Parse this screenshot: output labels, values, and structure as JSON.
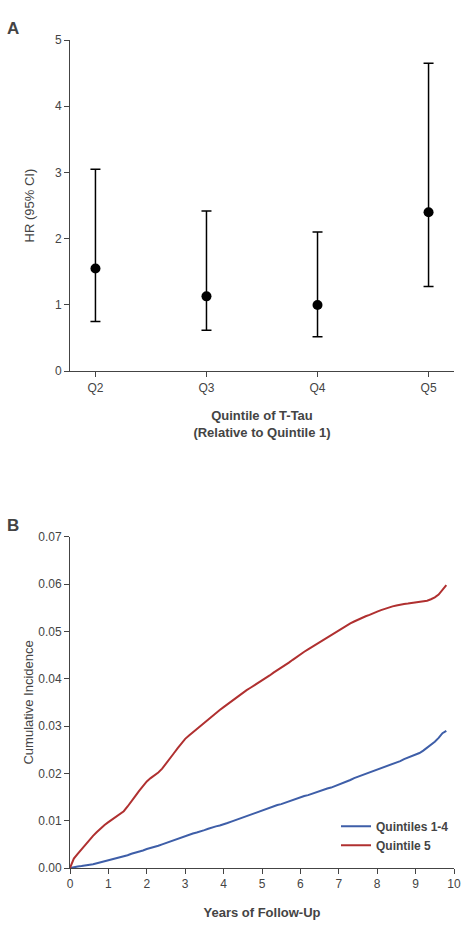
{
  "chart_data": [
    {
      "type": "scatter",
      "title": "A",
      "categories": [
        "Q2",
        "Q3",
        "Q4",
        "Q5"
      ],
      "values": [
        1.55,
        1.13,
        1.0,
        2.4
      ],
      "ci_low": [
        0.75,
        0.62,
        0.52,
        1.28
      ],
      "ci_high": [
        3.05,
        2.42,
        2.1,
        4.65
      ],
      "color": "#000000",
      "marker": "circle",
      "ylabel": "HR (95% CI)",
      "xlabel": "Quintile of T-Tau\n(Relative to Quintile 1)",
      "ylim": [
        0,
        5
      ],
      "yticks": [
        0,
        1,
        2,
        3,
        4,
        5
      ],
      "grid": false
    },
    {
      "type": "line",
      "title": "B",
      "series": [
        {
          "name": "Quintiles 1-4",
          "color": "#3e5ea8",
          "x": [
            0,
            0.1,
            0.2,
            0.3,
            0.4,
            0.5,
            0.6,
            0.7,
            0.8,
            0.9,
            1.0,
            1.1,
            1.2,
            1.3,
            1.4,
            1.5,
            1.6,
            1.7,
            1.8,
            1.9,
            2.0,
            2.1,
            2.2,
            2.3,
            2.4,
            2.5,
            2.6,
            2.7,
            2.8,
            2.9,
            3.0,
            3.1,
            3.2,
            3.3,
            3.4,
            3.5,
            3.6,
            3.7,
            3.8,
            3.9,
            4.0,
            4.1,
            4.2,
            4.3,
            4.4,
            4.5,
            4.6,
            4.7,
            4.8,
            4.9,
            5.0,
            5.1,
            5.2,
            5.3,
            5.4,
            5.5,
            5.6,
            5.7,
            5.8,
            5.9,
            6.0,
            6.1,
            6.2,
            6.3,
            6.4,
            6.5,
            6.6,
            6.7,
            6.8,
            6.9,
            7.0,
            7.1,
            7.2,
            7.3,
            7.4,
            7.5,
            7.6,
            7.7,
            7.8,
            7.9,
            8.0,
            8.1,
            8.2,
            8.3,
            8.4,
            8.5,
            8.6,
            8.7,
            8.8,
            8.9,
            9.0,
            9.1,
            9.2,
            9.3,
            9.4,
            9.5,
            9.6,
            9.7,
            9.8
          ],
          "values": [
            0,
            0.0002,
            0.0003,
            0.0004,
            0.0005,
            0.0006,
            0.0008,
            0.001,
            0.0012,
            0.0014,
            0.0016,
            0.0019,
            0.0021,
            0.0023,
            0.0025,
            0.0027,
            0.003,
            0.0032,
            0.0034,
            0.0037,
            0.004,
            0.0042,
            0.0044,
            0.0047,
            0.005,
            0.0053,
            0.0056,
            0.0059,
            0.0062,
            0.0065,
            0.0068,
            0.007,
            0.0073,
            0.0075,
            0.0077,
            0.008,
            0.0083,
            0.0086,
            0.0088,
            0.009,
            0.0092,
            0.0095,
            0.0098,
            0.0101,
            0.0104,
            0.0107,
            0.011,
            0.0113,
            0.0116,
            0.0119,
            0.0122,
            0.0124,
            0.0127,
            0.013,
            0.0133,
            0.0135,
            0.0138,
            0.014,
            0.0143,
            0.0146,
            0.0149,
            0.0152,
            0.0154,
            0.0157,
            0.016,
            0.0163,
            0.0165,
            0.0168,
            0.017,
            0.0173,
            0.0176,
            0.018,
            0.0183,
            0.0186,
            0.019,
            0.0193,
            0.0196,
            0.0199,
            0.0202,
            0.0205,
            0.0208,
            0.021,
            0.0213,
            0.0216,
            0.022,
            0.0223,
            0.0226,
            0.023,
            0.0233,
            0.0236,
            0.024,
            0.0243,
            0.0248,
            0.0254,
            0.026,
            0.0267,
            0.0275,
            0.0285,
            0.029
          ]
        },
        {
          "name": "Quintile 5",
          "color": "#b03030",
          "x": [
            0,
            0.05,
            0.1,
            0.2,
            0.3,
            0.4,
            0.5,
            0.6,
            0.7,
            0.8,
            0.9,
            1.0,
            1.1,
            1.2,
            1.3,
            1.4,
            1.5,
            1.6,
            1.7,
            1.8,
            1.9,
            2.0,
            2.1,
            2.2,
            2.3,
            2.4,
            2.5,
            2.6,
            2.7,
            2.8,
            2.9,
            3.0,
            3.1,
            3.2,
            3.3,
            3.4,
            3.5,
            3.6,
            3.7,
            3.8,
            3.9,
            4.0,
            4.1,
            4.2,
            4.3,
            4.4,
            4.5,
            4.6,
            4.7,
            4.8,
            4.9,
            5.0,
            5.1,
            5.2,
            5.3,
            5.4,
            5.5,
            5.6,
            5.7,
            5.8,
            5.9,
            6.0,
            6.1,
            6.2,
            6.3,
            6.4,
            6.5,
            6.6,
            6.7,
            6.8,
            6.9,
            7.0,
            7.1,
            7.2,
            7.3,
            7.4,
            7.5,
            7.6,
            7.7,
            7.8,
            7.9,
            8.0,
            8.1,
            8.2,
            8.3,
            8.4,
            8.5,
            8.6,
            8.7,
            8.8,
            8.9,
            9.0,
            9.1,
            9.2,
            9.3,
            9.4,
            9.5,
            9.6,
            9.7,
            9.8
          ],
          "values": [
            0,
            0.001,
            0.002,
            0.003,
            0.004,
            0.005,
            0.006,
            0.0068,
            0.0076,
            0.0084,
            0.0091,
            0.0097,
            0.0103,
            0.0109,
            0.0115,
            0.012,
            0.013,
            0.014,
            0.0152,
            0.0163,
            0.0173,
            0.0183,
            0.019,
            0.0196,
            0.0202,
            0.021,
            0.022,
            0.023,
            0.0242,
            0.0253,
            0.0263,
            0.0273,
            0.028,
            0.0287,
            0.0293,
            0.03,
            0.0307,
            0.0315,
            0.0322,
            0.0328,
            0.0334,
            0.034,
            0.0346,
            0.0352,
            0.0359,
            0.0365,
            0.037,
            0.0376,
            0.0381,
            0.0386,
            0.0391,
            0.0396,
            0.0401,
            0.0407,
            0.0413,
            0.0418,
            0.0423,
            0.0428,
            0.0434,
            0.044,
            0.0446,
            0.0452,
            0.0457,
            0.0462,
            0.0467,
            0.0472,
            0.0477,
            0.0482,
            0.0487,
            0.0492,
            0.0497,
            0.0502,
            0.0508,
            0.0513,
            0.0517,
            0.0521,
            0.0525,
            0.0529,
            0.0532,
            0.0535,
            0.0539,
            0.0542,
            0.0545,
            0.0548,
            0.0551,
            0.0553,
            0.0555,
            0.0557,
            0.0558,
            0.0559,
            0.056,
            0.0561,
            0.0562,
            0.0563,
            0.0565,
            0.0568,
            0.0572,
            0.0578,
            0.0588,
            0.0598
          ]
        }
      ],
      "xlabel": "Years of Follow-Up",
      "ylabel": "Cumulative Incidence",
      "xlim": [
        0,
        10
      ],
      "xticks": [
        0,
        1,
        2,
        3,
        4,
        5,
        6,
        7,
        8,
        9,
        10
      ],
      "ylim": [
        0,
        0.07
      ],
      "yticks": [
        {
          "value": 0,
          "label": "0.00"
        },
        {
          "value": 0.01,
          "label": "0.01"
        },
        {
          "value": 0.02,
          "label": "0.02"
        },
        {
          "value": 0.03,
          "label": "0.03"
        },
        {
          "value": 0.04,
          "label": "0.04"
        },
        {
          "value": 0.05,
          "label": "0.05"
        },
        {
          "value": 0.06,
          "label": "0.06"
        },
        {
          "value": 0.07,
          "label": "0.07"
        }
      ],
      "legend": "lower right",
      "grid": false
    }
  ]
}
